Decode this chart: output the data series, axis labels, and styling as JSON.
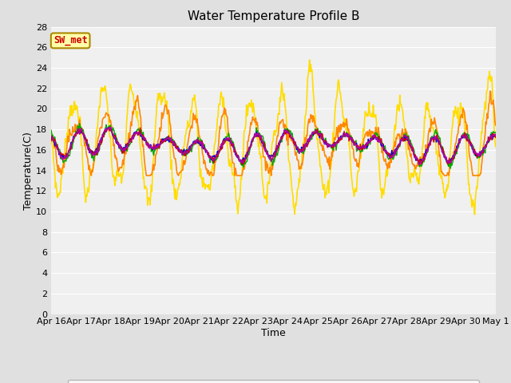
{
  "title": "Water Temperature Profile B",
  "xlabel": "Time",
  "ylabel": "Temperature(C)",
  "ylim": [
    0,
    28
  ],
  "yticks": [
    0,
    2,
    4,
    6,
    8,
    10,
    12,
    14,
    16,
    18,
    20,
    22,
    24,
    26,
    28
  ],
  "xtick_labels": [
    "Apr 16",
    "Apr 17",
    "Apr 18",
    "Apr 19",
    "Apr 20",
    "Apr 21",
    "Apr 22",
    "Apr 23",
    "Apr 24",
    "Apr 25",
    "Apr 26",
    "Apr 27",
    "Apr 28",
    "Apr 29",
    "Apr 30",
    "May 1"
  ],
  "fig_bg": "#e0e0e0",
  "plot_bg": "#f0f0f0",
  "grid_color": "#ffffff",
  "series": {
    "0cm": {
      "color": "#cc0000",
      "lw": 1.0
    },
    "+5cm": {
      "color": "#0000cc",
      "lw": 1.0
    },
    "+10cm": {
      "color": "#00aa00",
      "lw": 1.0
    },
    "+30cm": {
      "color": "#ff8800",
      "lw": 1.2
    },
    "+50cm": {
      "color": "#ffdd00",
      "lw": 1.2
    },
    "TC_temp11": {
      "color": "#aa00aa",
      "lw": 1.0
    }
  },
  "annotation_text": "SW_met",
  "annotation_color": "#cc0000",
  "annotation_bg": "#ffffaa",
  "annotation_border": "#aa8800"
}
